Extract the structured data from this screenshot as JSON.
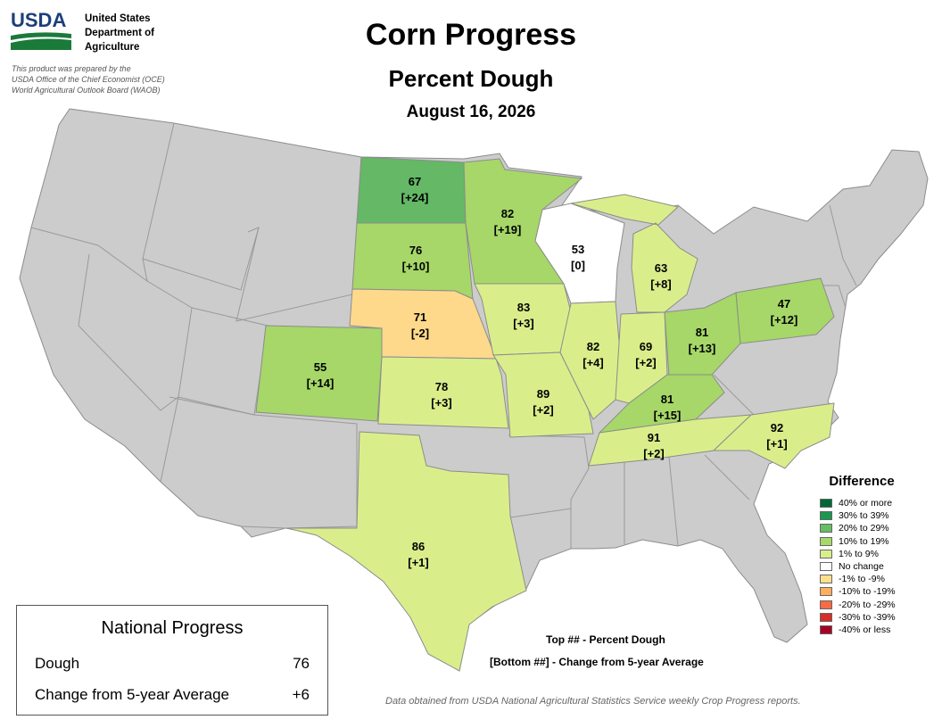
{
  "header": {
    "agency_abbr": "USDA",
    "agency_lines": [
      "United States",
      "Department of",
      "Agriculture"
    ],
    "prepared_lines": [
      "This product was prepared by the",
      "USDA Office of the Chief Economist (OCE)",
      "World Agricultural Outlook Board (WAOB)"
    ],
    "title": "Corn Progress",
    "subtitle": "Percent Dough",
    "date": "August 16, 2026"
  },
  "states": {
    "ND": {
      "value": "67",
      "diff": "[+24]",
      "color": "#64b866"
    },
    "SD": {
      "value": "76",
      "diff": "[+10]",
      "color": "#a6d768"
    },
    "NE": {
      "value": "71",
      "diff": "[-2]",
      "color": "#fed98b"
    },
    "CO": {
      "value": "55",
      "diff": "[+14]",
      "color": "#a6d768"
    },
    "KS": {
      "value": "78",
      "diff": "[+3]",
      "color": "#d9ee8b"
    },
    "TX": {
      "value": "86",
      "diff": "[+1]",
      "color": "#d9ee8b"
    },
    "MN": {
      "value": "82",
      "diff": "[+19]",
      "color": "#a6d768"
    },
    "IA": {
      "value": "83",
      "diff": "[+3]",
      "color": "#d9ee8b"
    },
    "MO": {
      "value": "89",
      "diff": "[+2]",
      "color": "#d9ee8b"
    },
    "WI": {
      "value": "53",
      "diff": "[0]",
      "color": "#ffffff"
    },
    "IL": {
      "value": "82",
      "diff": "[+4]",
      "color": "#d9ee8b"
    },
    "MI": {
      "value": "63",
      "diff": "[+8]",
      "color": "#d9ee8b"
    },
    "IN": {
      "value": "69",
      "diff": "[+2]",
      "color": "#d9ee8b"
    },
    "OH": {
      "value": "81",
      "diff": "[+13]",
      "color": "#a6d768"
    },
    "KY": {
      "value": "81",
      "diff": "[+15]",
      "color": "#a6d768"
    },
    "TN": {
      "value": "91",
      "diff": "[+2]",
      "color": "#d9ee8b"
    },
    "NC": {
      "value": "92",
      "diff": "[+1]",
      "color": "#d9ee8b"
    },
    "PA": {
      "value": "47",
      "diff": "[+12]",
      "color": "#a6d768"
    }
  },
  "legend": {
    "title": "Difference",
    "items": [
      {
        "label": "40% or more",
        "color": "#006837"
      },
      {
        "label": "30% to 39%",
        "color": "#1a9850"
      },
      {
        "label": "20% to 29%",
        "color": "#66bd63"
      },
      {
        "label": "10% to 19%",
        "color": "#a6d96a"
      },
      {
        "label": "1% to 9%",
        "color": "#d9ef8b"
      },
      {
        "label": "No change",
        "color": "#ffffff"
      },
      {
        "label": "-1% to -9%",
        "color": "#fee08b"
      },
      {
        "label": "-10% to -19%",
        "color": "#fdae61"
      },
      {
        "label": "-20% to -29%",
        "color": "#f46d43"
      },
      {
        "label": "-30% to -39%",
        "color": "#d73027"
      },
      {
        "label": "-40% or less",
        "color": "#a50026"
      }
    ]
  },
  "national": {
    "title": "National Progress",
    "rows": [
      {
        "label": "Dough",
        "value": "76"
      },
      {
        "label": "Change from 5-year Average",
        "value": "+6"
      }
    ]
  },
  "notes": {
    "top": "Top ## - Percent Dough",
    "bottom": "[Bottom ##] - Change from 5-year Average",
    "source": "Data obtained from USDA National Agricultural Statistics Service weekly Crop Progress reports."
  },
  "colors": {
    "unreported": "#cccccc",
    "border": "#8c8c8c"
  }
}
